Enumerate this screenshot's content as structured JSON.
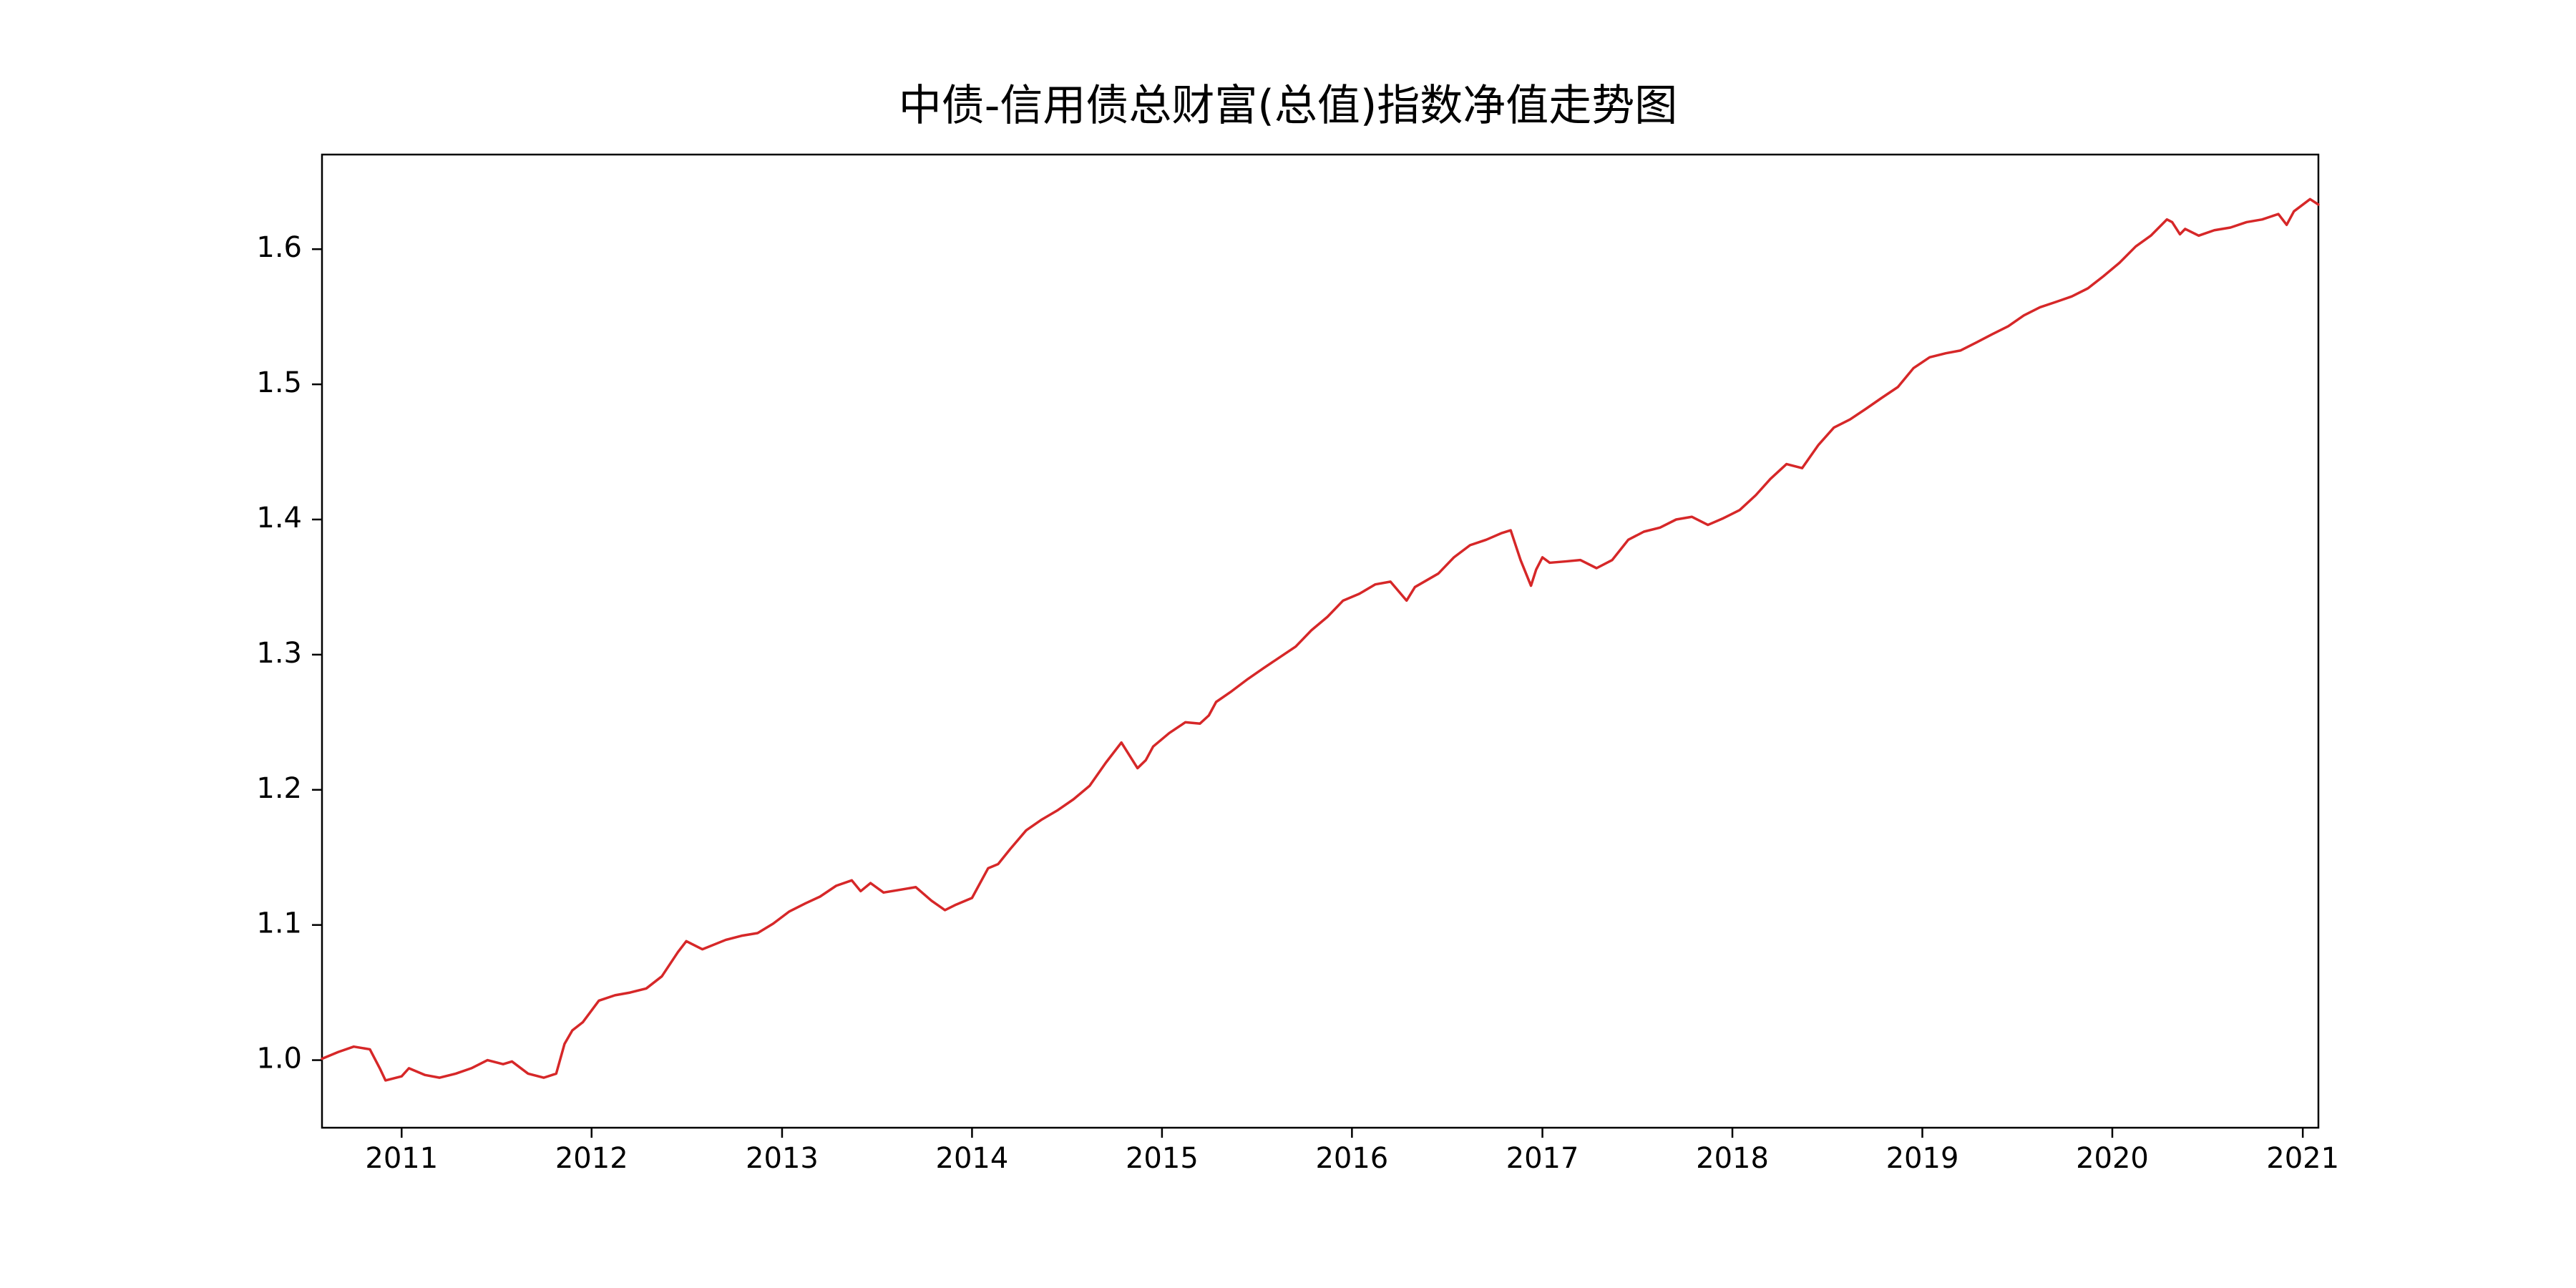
{
  "chart_data": {
    "type": "line",
    "title": "中债-信用债总财富(总值)指数净值走势图",
    "xlabel": "",
    "ylabel": "",
    "x_ticks": [
      "2011",
      "2012",
      "2013",
      "2014",
      "2015",
      "2016",
      "2017",
      "2018",
      "2019",
      "2020",
      "2021"
    ],
    "y_ticks": [
      "1.0",
      "1.1",
      "1.2",
      "1.3",
      "1.4",
      "1.5",
      "1.6"
    ],
    "xlim": [
      "2010-08-01",
      "2021-01-31"
    ],
    "ylim": [
      0.95,
      1.67
    ],
    "grid": false,
    "line_color": "#d62728",
    "series": [
      {
        "x": [
          "2010-08-01",
          "2010-09-01",
          "2010-10-01",
          "2010-11-01",
          "2010-11-20",
          "2010-12-01",
          "2011-01-01",
          "2011-01-15",
          "2011-02-15",
          "2011-03-15",
          "2011-04-15",
          "2011-05-15",
          "2011-06-15",
          "2011-07-15",
          "2011-08-01",
          "2011-09-01",
          "2011-10-01",
          "2011-10-25",
          "2011-11-10",
          "2011-11-25",
          "2011-12-15",
          "2012-01-15",
          "2012-02-15",
          "2012-03-15",
          "2012-04-15",
          "2012-05-15",
          "2012-06-15",
          "2012-07-01",
          "2012-08-01",
          "2012-09-15",
          "2012-10-15",
          "2012-11-15",
          "2012-12-15",
          "2013-01-15",
          "2013-02-15",
          "2013-03-15",
          "2013-04-15",
          "2013-05-15",
          "2013-06-01",
          "2013-06-20",
          "2013-07-15",
          "2013-08-15",
          "2013-09-15",
          "2013-10-15",
          "2013-11-10",
          "2013-12-01",
          "2014-01-01",
          "2014-02-01",
          "2014-02-20",
          "2014-03-15",
          "2014-04-15",
          "2014-05-15",
          "2014-06-15",
          "2014-07-15",
          "2014-08-15",
          "2014-09-15",
          "2014-10-15",
          "2014-11-15",
          "2014-12-01",
          "2014-12-15",
          "2015-01-15",
          "2015-02-15",
          "2015-03-15",
          "2015-04-01",
          "2015-04-15",
          "2015-05-15",
          "2015-06-15",
          "2015-07-15",
          "2015-08-15",
          "2015-09-15",
          "2015-10-15",
          "2015-11-15",
          "2015-12-15",
          "2016-01-15",
          "2016-02-15",
          "2016-03-15",
          "2016-04-15",
          "2016-05-01",
          "2016-06-15",
          "2016-07-15",
          "2016-08-15",
          "2016-09-15",
          "2016-10-15",
          "2016-11-01",
          "2016-11-20",
          "2016-12-10",
          "2016-12-20",
          "2017-01-01",
          "2017-01-15",
          "2017-02-15",
          "2017-03-15",
          "2017-04-15",
          "2017-05-15",
          "2017-06-15",
          "2017-07-15",
          "2017-08-15",
          "2017-09-15",
          "2017-10-15",
          "2017-11-15",
          "2017-12-15",
          "2018-01-15",
          "2018-02-15",
          "2018-03-15",
          "2018-04-15",
          "2018-05-15",
          "2018-06-15",
          "2018-07-15",
          "2018-08-15",
          "2018-09-15",
          "2018-10-15",
          "2018-11-15",
          "2018-12-15",
          "2019-01-15",
          "2019-02-15",
          "2019-03-15",
          "2019-04-15",
          "2019-05-15",
          "2019-06-15",
          "2019-07-15",
          "2019-08-15",
          "2019-09-15",
          "2019-10-15",
          "2019-11-15",
          "2019-12-15",
          "2020-01-15",
          "2020-02-15",
          "2020-03-15",
          "2020-04-15",
          "2020-04-25",
          "2020-05-10",
          "2020-05-20",
          "2020-06-15",
          "2020-07-15",
          "2020-08-15",
          "2020-09-15",
          "2020-10-15",
          "2020-11-15",
          "2020-12-01",
          "2020-12-15",
          "2021-01-15",
          "2021-01-31"
        ],
        "y": [
          1.001,
          1.006,
          1.01,
          1.008,
          0.994,
          0.985,
          0.988,
          0.994,
          0.989,
          0.987,
          0.99,
          0.994,
          1.0,
          0.997,
          0.999,
          0.99,
          0.987,
          0.99,
          1.012,
          1.022,
          1.028,
          1.044,
          1.048,
          1.05,
          1.053,
          1.062,
          1.08,
          1.088,
          1.082,
          1.089,
          1.092,
          1.094,
          1.101,
          1.11,
          1.116,
          1.121,
          1.129,
          1.133,
          1.125,
          1.131,
          1.124,
          1.126,
          1.128,
          1.118,
          1.111,
          1.115,
          1.12,
          1.142,
          1.145,
          1.156,
          1.17,
          1.178,
          1.185,
          1.193,
          1.203,
          1.22,
          1.235,
          1.216,
          1.222,
          1.232,
          1.242,
          1.25,
          1.249,
          1.255,
          1.265,
          1.273,
          1.282,
          1.29,
          1.298,
          1.306,
          1.318,
          1.328,
          1.34,
          1.345,
          1.352,
          1.354,
          1.34,
          1.35,
          1.36,
          1.372,
          1.381,
          1.385,
          1.39,
          1.392,
          1.37,
          1.351,
          1.363,
          1.372,
          1.368,
          1.369,
          1.37,
          1.364,
          1.37,
          1.385,
          1.391,
          1.394,
          1.4,
          1.402,
          1.396,
          1.401,
          1.407,
          1.418,
          1.43,
          1.441,
          1.438,
          1.455,
          1.468,
          1.474,
          1.482,
          1.49,
          1.498,
          1.512,
          1.52,
          1.523,
          1.525,
          1.531,
          1.537,
          1.543,
          1.551,
          1.557,
          1.561,
          1.565,
          1.571,
          1.58,
          1.59,
          1.602,
          1.61,
          1.622,
          1.62,
          1.611,
          1.615,
          1.61,
          1.614,
          1.616,
          1.62,
          1.622,
          1.626,
          1.618,
          1.628,
          1.637,
          1.633
        ]
      }
    ]
  }
}
